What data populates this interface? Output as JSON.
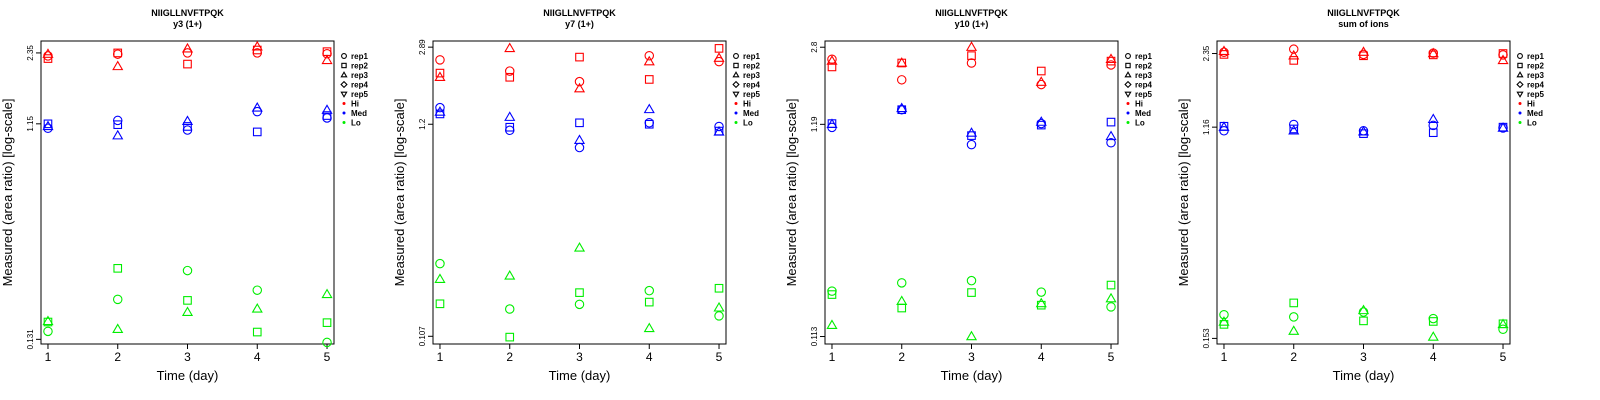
{
  "x_ticks": [
    1,
    2,
    3,
    4,
    5
  ],
  "xlabel": "Time (day)",
  "ylabel": "Measured (area ratio) [log-scale]",
  "legend": {
    "placement": "right",
    "reps": [
      "rep1",
      "rep2",
      "rep3",
      "rep4",
      "rep5"
    ],
    "levels": [
      "Hi",
      "Med",
      "Lo"
    ]
  },
  "colors": {
    "Hi": "#ff0000",
    "Med": "#0000ff",
    "Lo": "#00ee00"
  },
  "markers": {
    "rep1": "circle",
    "rep2": "square",
    "rep3": "triangle-up",
    "rep4": "diamond",
    "rep5": "triangle-down"
  },
  "chart_data": [
    {
      "type": "scatter",
      "title": "NIIGLLNVFTPQK",
      "subtitle": "y3 (1+)",
      "yscale": "log",
      "ylim": [
        0.125,
        2.65
      ],
      "yticks": [
        "0.131",
        "1.15",
        "2.35"
      ],
      "series": [
        {
          "name": "Hi",
          "rep": "rep1",
          "points": [
            [
              1,
              2.28
            ],
            [
              2,
              2.32
            ],
            [
              3,
              2.35
            ],
            [
              4,
              2.35
            ],
            [
              5,
              2.33
            ]
          ]
        },
        {
          "name": "Hi",
          "rep": "rep2",
          "points": [
            [
              1,
              2.22
            ],
            [
              2,
              2.35
            ],
            [
              3,
              2.1
            ],
            [
              4,
              2.42
            ],
            [
              5,
              2.38
            ]
          ]
        },
        {
          "name": "Hi",
          "rep": "rep3",
          "points": [
            [
              1,
              2.32
            ],
            [
              2,
              2.05
            ],
            [
              3,
              2.45
            ],
            [
              4,
              2.5
            ],
            [
              5,
              2.18
            ]
          ]
        },
        {
          "name": "Med",
          "rep": "rep1",
          "points": [
            [
              1,
              1.1
            ],
            [
              2,
              1.19
            ],
            [
              3,
              1.08
            ],
            [
              4,
              1.3
            ],
            [
              5,
              1.22
            ]
          ]
        },
        {
          "name": "Med",
          "rep": "rep2",
          "points": [
            [
              1,
              1.15
            ],
            [
              2,
              1.14
            ],
            [
              3,
              1.12
            ],
            [
              4,
              1.06
            ],
            [
              5,
              1.25
            ]
          ]
        },
        {
          "name": "Med",
          "rep": "rep3",
          "points": [
            [
              1,
              1.12
            ],
            [
              2,
              1.02
            ],
            [
              3,
              1.18
            ],
            [
              4,
              1.35
            ],
            [
              5,
              1.32
            ]
          ]
        },
        {
          "name": "Lo",
          "rep": "rep1",
          "points": [
            [
              1,
              0.142
            ],
            [
              2,
              0.196
            ],
            [
              3,
              0.262
            ],
            [
              4,
              0.215
            ],
            [
              5,
              0.127
            ]
          ]
        },
        {
          "name": "Lo",
          "rep": "rep2",
          "points": [
            [
              1,
              0.156
            ],
            [
              2,
              0.268
            ],
            [
              3,
              0.194
            ],
            [
              4,
              0.141
            ],
            [
              5,
              0.155
            ]
          ]
        },
        {
          "name": "Lo",
          "rep": "rep3",
          "points": [
            [
              1,
              0.157
            ],
            [
              2,
              0.145
            ],
            [
              3,
              0.172
            ],
            [
              4,
              0.178
            ],
            [
              5,
              0.206
            ]
          ]
        }
      ]
    },
    {
      "type": "scatter",
      "title": "NIIGLLNVFTPQK",
      "subtitle": "y7 (1+)",
      "yscale": "log",
      "ylim": [
        0.098,
        3.1
      ],
      "yticks": [
        "0.107",
        "1.2",
        "2.89"
      ],
      "series": [
        {
          "name": "Hi",
          "rep": "rep1",
          "points": [
            [
              1,
              2.5
            ],
            [
              2,
              2.2
            ],
            [
              3,
              1.95
            ],
            [
              4,
              2.62
            ],
            [
              5,
              2.45
            ]
          ]
        },
        {
          "name": "Hi",
          "rep": "rep2",
          "points": [
            [
              1,
              2.15
            ],
            [
              2,
              2.05
            ],
            [
              3,
              2.58
            ],
            [
              4,
              2.0
            ],
            [
              5,
              2.85
            ]
          ]
        },
        {
          "name": "Hi",
          "rep": "rep3",
          "points": [
            [
              1,
              2.05
            ],
            [
              2,
              2.85
            ],
            [
              3,
              1.8
            ],
            [
              4,
              2.45
            ],
            [
              5,
              2.55
            ]
          ]
        },
        {
          "name": "Med",
          "rep": "rep1",
          "points": [
            [
              1,
              1.45
            ],
            [
              2,
              1.12
            ],
            [
              3,
              0.92
            ],
            [
              4,
              1.22
            ],
            [
              5,
              1.17
            ]
          ]
        },
        {
          "name": "Med",
          "rep": "rep2",
          "points": [
            [
              1,
              1.35
            ],
            [
              2,
              1.16
            ],
            [
              3,
              1.22
            ],
            [
              4,
              1.2
            ],
            [
              5,
              1.11
            ]
          ]
        },
        {
          "name": "Med",
          "rep": "rep3",
          "points": [
            [
              1,
              1.38
            ],
            [
              2,
              1.3
            ],
            [
              3,
              1.0
            ],
            [
              4,
              1.42
            ],
            [
              5,
              1.1
            ]
          ]
        },
        {
          "name": "Lo",
          "rep": "rep1",
          "points": [
            [
              1,
              0.245
            ],
            [
              2,
              0.146
            ],
            [
              3,
              0.154
            ],
            [
              4,
              0.18
            ],
            [
              5,
              0.135
            ]
          ]
        },
        {
          "name": "Lo",
          "rep": "rep2",
          "points": [
            [
              1,
              0.155
            ],
            [
              2,
              0.106
            ],
            [
              3,
              0.176
            ],
            [
              4,
              0.158
            ],
            [
              5,
              0.185
            ]
          ]
        },
        {
          "name": "Lo",
          "rep": "rep3",
          "points": [
            [
              1,
              0.205
            ],
            [
              2,
              0.213
            ],
            [
              3,
              0.293
            ],
            [
              4,
              0.117
            ],
            [
              5,
              0.148
            ]
          ]
        }
      ]
    },
    {
      "type": "scatter",
      "title": "NIIGLLNVFTPQK",
      "subtitle": "y10 (1+)",
      "yscale": "log",
      "ylim": [
        0.104,
        3.0
      ],
      "yticks": [
        "0.113",
        "1.19",
        "2.8"
      ],
      "series": [
        {
          "name": "Hi",
          "rep": "rep1",
          "points": [
            [
              1,
              2.45
            ],
            [
              2,
              1.95
            ],
            [
              3,
              2.35
            ],
            [
              4,
              1.85
            ],
            [
              5,
              2.3
            ]
          ]
        },
        {
          "name": "Hi",
          "rep": "rep2",
          "points": [
            [
              1,
              2.25
            ],
            [
              2,
              2.35
            ],
            [
              3,
              2.55
            ],
            [
              4,
              2.15
            ],
            [
              5,
              2.4
            ]
          ]
        },
        {
          "name": "Hi",
          "rep": "rep3",
          "points": [
            [
              1,
              2.4
            ],
            [
              2,
              2.35
            ],
            [
              3,
              2.8
            ],
            [
              4,
              1.9
            ],
            [
              5,
              2.45
            ]
          ]
        },
        {
          "name": "Med",
          "rep": "rep1",
          "points": [
            [
              1,
              1.15
            ],
            [
              2,
              1.4
            ],
            [
              3,
              0.95
            ],
            [
              4,
              1.2
            ],
            [
              5,
              0.97
            ]
          ]
        },
        {
          "name": "Med",
          "rep": "rep2",
          "points": [
            [
              1,
              1.2
            ],
            [
              2,
              1.4
            ],
            [
              3,
              1.05
            ],
            [
              4,
              1.18
            ],
            [
              5,
              1.22
            ]
          ]
        },
        {
          "name": "Med",
          "rep": "rep3",
          "points": [
            [
              1,
              1.19
            ],
            [
              2,
              1.42
            ],
            [
              3,
              1.08
            ],
            [
              4,
              1.22
            ],
            [
              5,
              1.04
            ]
          ]
        },
        {
          "name": "Lo",
          "rep": "rep1",
          "points": [
            [
              1,
              0.187
            ],
            [
              2,
              0.205
            ],
            [
              3,
              0.21
            ],
            [
              4,
              0.185
            ],
            [
              5,
              0.157
            ]
          ]
        },
        {
          "name": "Lo",
          "rep": "rep2",
          "points": [
            [
              1,
              0.18
            ],
            [
              2,
              0.155
            ],
            [
              3,
              0.184
            ],
            [
              4,
              0.16
            ],
            [
              5,
              0.2
            ]
          ]
        },
        {
          "name": "Lo",
          "rep": "rep3",
          "points": [
            [
              1,
              0.128
            ],
            [
              2,
              0.167
            ],
            [
              3,
              0.113
            ],
            [
              4,
              0.163
            ],
            [
              5,
              0.172
            ]
          ]
        }
      ]
    },
    {
      "type": "scatter",
      "title": "NIIGLLNVFTPQK",
      "subtitle": "sum of ions",
      "yscale": "log",
      "ylim": [
        0.145,
        2.65
      ],
      "yticks": [
        "0.153",
        "1.16",
        "2.35"
      ],
      "series": [
        {
          "name": "Hi",
          "rep": "rep1",
          "points": [
            [
              1,
              2.38
            ],
            [
              2,
              2.45
            ],
            [
              3,
              2.33
            ],
            [
              4,
              2.36
            ],
            [
              5,
              2.32
            ]
          ]
        },
        {
          "name": "Hi",
          "rep": "rep2",
          "points": [
            [
              1,
              2.33
            ],
            [
              2,
              2.2
            ],
            [
              3,
              2.3
            ],
            [
              4,
              2.32
            ],
            [
              5,
              2.35
            ]
          ]
        },
        {
          "name": "Hi",
          "rep": "rep3",
          "points": [
            [
              1,
              2.4
            ],
            [
              2,
              2.3
            ],
            [
              3,
              2.38
            ],
            [
              4,
              2.35
            ],
            [
              5,
              2.2
            ]
          ]
        },
        {
          "name": "Med",
          "rep": "rep1",
          "points": [
            [
              1,
              1.12
            ],
            [
              2,
              1.19
            ],
            [
              3,
              1.12
            ],
            [
              4,
              1.18
            ],
            [
              5,
              1.15
            ]
          ]
        },
        {
          "name": "Med",
          "rep": "rep2",
          "points": [
            [
              1,
              1.17
            ],
            [
              2,
              1.14
            ],
            [
              3,
              1.09
            ],
            [
              4,
              1.1
            ],
            [
              5,
              1.16
            ]
          ]
        },
        {
          "name": "Med",
          "rep": "rep3",
          "points": [
            [
              1,
              1.16
            ],
            [
              2,
              1.12
            ],
            [
              3,
              1.11
            ],
            [
              4,
              1.25
            ],
            [
              5,
              1.15
            ]
          ]
        },
        {
          "name": "Lo",
          "rep": "rep1",
          "points": [
            [
              1,
              0.192
            ],
            [
              2,
              0.188
            ],
            [
              3,
              0.197
            ],
            [
              4,
              0.185
            ],
            [
              5,
              0.167
            ]
          ]
        },
        {
          "name": "Lo",
          "rep": "rep2",
          "points": [
            [
              1,
              0.175
            ],
            [
              2,
              0.215
            ],
            [
              3,
              0.181
            ],
            [
              4,
              0.18
            ],
            [
              5,
              0.176
            ]
          ]
        },
        {
          "name": "Lo",
          "rep": "rep3",
          "points": [
            [
              1,
              0.179
            ],
            [
              2,
              0.164
            ],
            [
              3,
              0.2
            ],
            [
              4,
              0.155
            ],
            [
              5,
              0.175
            ]
          ]
        }
      ]
    }
  ]
}
